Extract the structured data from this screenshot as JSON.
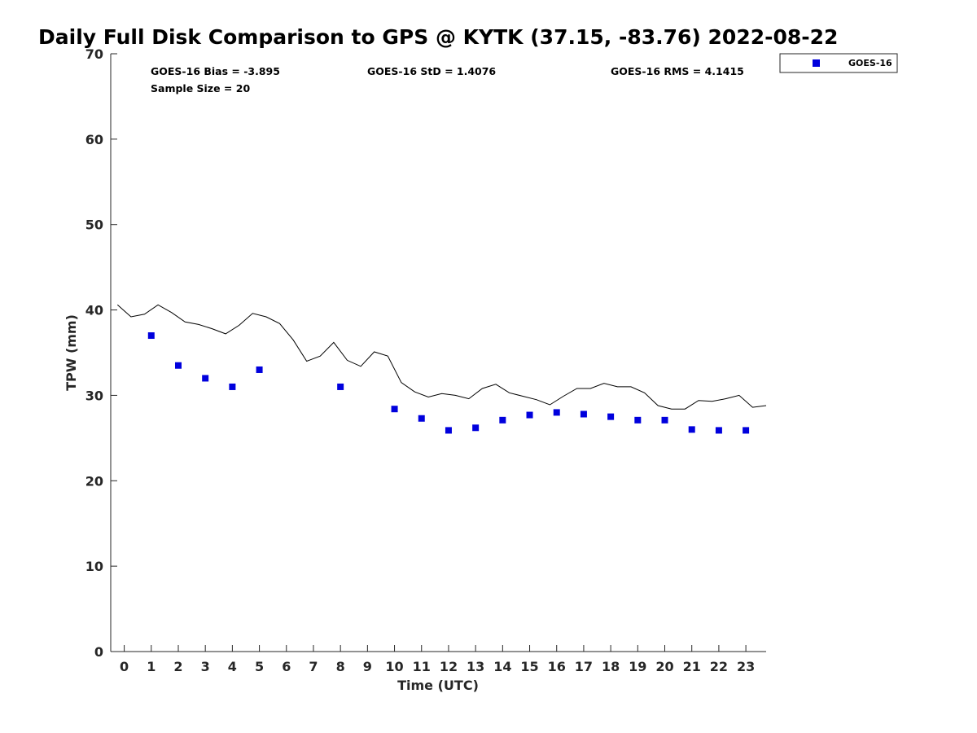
{
  "chart_data": {
    "type": "scatter",
    "title": "Daily Full Disk Comparison to GPS @ KYTK (37.15, -83.76) 2022-08-22",
    "xlabel": "Time (UTC)",
    "ylabel": "TPW (mm)",
    "xlim": [
      -0.5,
      23.75
    ],
    "ylim": [
      0,
      70
    ],
    "x_ticks": [
      0,
      1,
      2,
      3,
      4,
      5,
      6,
      7,
      8,
      9,
      10,
      11,
      12,
      13,
      14,
      15,
      16,
      17,
      18,
      19,
      20,
      21,
      22,
      23
    ],
    "y_ticks": [
      0,
      10,
      20,
      30,
      40,
      50,
      60,
      70
    ],
    "grid": false,
    "legend_position": "outside top-right",
    "stats": {
      "bias": "GOES-16 Bias = -3.895",
      "std": "GOES-16 StD = 1.4076",
      "rms": "GOES-16 RMS = 4.1415",
      "sample_size": "Sample Size = 20"
    },
    "series": [
      {
        "name": "GOES-16",
        "kind": "scatter",
        "marker": "square",
        "color": "#0000dd",
        "x": [
          1,
          2,
          3,
          4,
          5,
          8,
          10,
          11,
          12,
          13,
          14,
          15,
          16,
          17,
          18,
          19,
          20,
          21,
          22,
          23
        ],
        "y": [
          37.0,
          33.5,
          32.0,
          31.0,
          33.0,
          31.0,
          28.4,
          27.3,
          25.9,
          26.2,
          27.1,
          27.7,
          28.0,
          27.8,
          27.5,
          27.1,
          27.1,
          26.0,
          25.9,
          25.9
        ]
      },
      {
        "kind": "line",
        "color": "#000000",
        "x": [
          -0.25,
          0.25,
          0.75,
          1.25,
          1.75,
          2.25,
          2.75,
          3.25,
          3.75,
          4.25,
          4.75,
          5.25,
          5.75,
          6.25,
          6.75,
          7.25,
          7.75,
          8.25,
          8.75,
          9.25,
          9.75,
          10.25,
          10.75,
          11.25,
          11.75,
          12.25,
          12.75,
          13.25,
          13.75,
          14.25,
          14.75,
          15.25,
          15.75,
          16.25,
          16.75,
          17.25,
          17.75,
          18.25,
          18.75,
          19.25,
          19.75,
          20.25,
          20.75,
          21.25,
          21.75,
          22.25,
          22.75,
          23.25,
          23.75
        ],
        "y": [
          40.6,
          39.2,
          39.5,
          40.6,
          39.7,
          38.6,
          38.3,
          37.8,
          37.2,
          38.2,
          39.6,
          39.2,
          38.4,
          36.5,
          34.0,
          34.6,
          36.2,
          34.1,
          33.4,
          35.1,
          34.6,
          31.5,
          30.4,
          29.8,
          30.2,
          30.0,
          29.6,
          30.8,
          31.3,
          30.3,
          29.9,
          29.5,
          28.9,
          29.9,
          30.8,
          30.8,
          31.4,
          31.0,
          31.0,
          30.3,
          28.8,
          28.4,
          28.4,
          29.4,
          29.3,
          29.6,
          30.0,
          28.6,
          28.8
        ]
      }
    ]
  }
}
